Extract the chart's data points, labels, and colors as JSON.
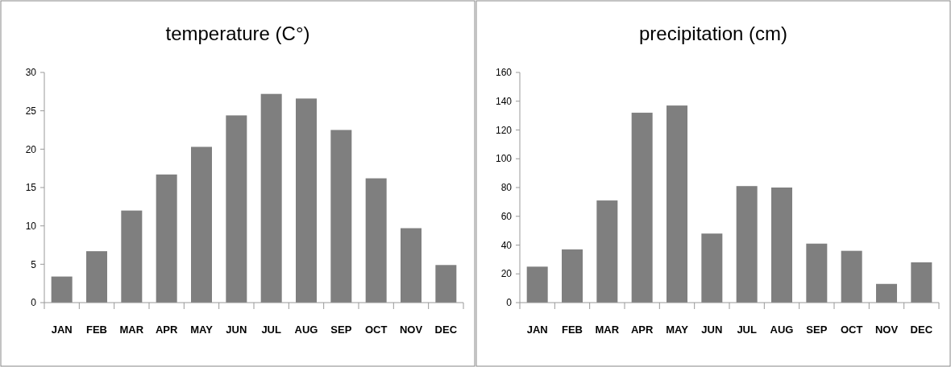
{
  "chart_data": [
    {
      "type": "bar",
      "title": "temperature (C°)",
      "categories": [
        "JAN",
        "FEB",
        "MAR",
        "APR",
        "MAY",
        "JUN",
        "JUL",
        "AUG",
        "SEP",
        "OCT",
        "NOV",
        "DEC"
      ],
      "values": [
        3.4,
        6.7,
        12,
        16.7,
        20.3,
        24.4,
        27.2,
        26.6,
        22.5,
        16.2,
        9.7,
        4.9
      ],
      "color": "#7f7f7f",
      "ylim": [
        0,
        30
      ],
      "yticks": [
        0,
        5,
        10,
        15,
        20,
        25,
        30
      ]
    },
    {
      "type": "bar",
      "title": "precipitation (cm)",
      "categories": [
        "JAN",
        "FEB",
        "MAR",
        "APR",
        "MAY",
        "JUN",
        "JUL",
        "AUG",
        "SEP",
        "OCT",
        "NOV",
        "DEC"
      ],
      "values": [
        25,
        37,
        71,
        132,
        137,
        48,
        81,
        80,
        41,
        36,
        13,
        28
      ],
      "color": "#7f7f7f",
      "ylim": [
        0,
        160
      ],
      "yticks": [
        0,
        20,
        40,
        60,
        80,
        100,
        120,
        140,
        160
      ]
    }
  ]
}
